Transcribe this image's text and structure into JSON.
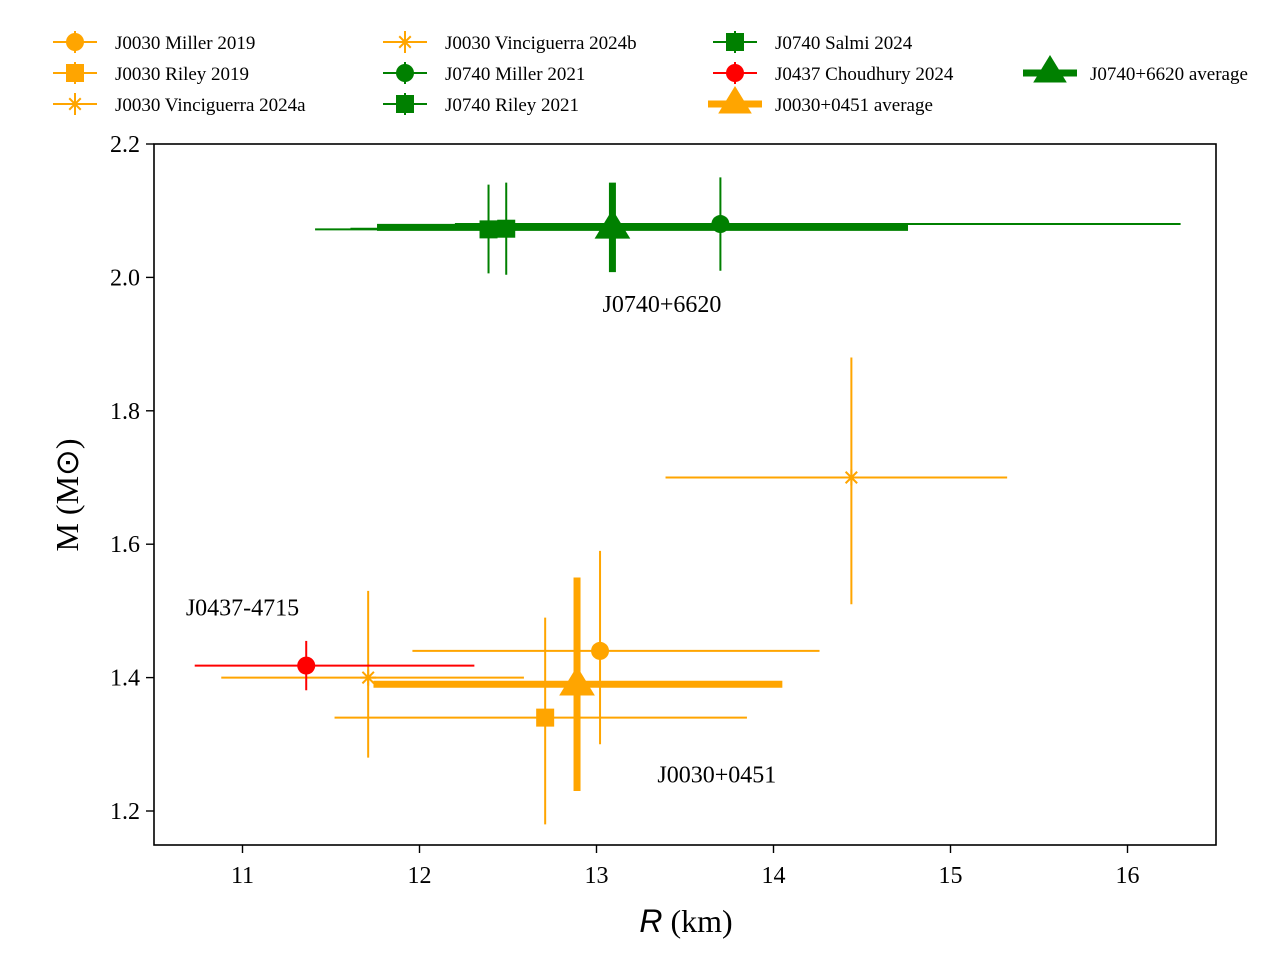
{
  "chart_data": {
    "type": "scatter",
    "title": "",
    "xlabel_italic": "R",
    "xlabel_rest": " (km)",
    "ylabel": "M (M⊙)",
    "xlim": [
      10.5,
      16.5
    ],
    "ylim": [
      1.15,
      2.2
    ],
    "xticks": [
      11,
      12,
      13,
      14,
      15,
      16
    ],
    "yticks": [
      1.2,
      1.4,
      1.6,
      1.8,
      2.0,
      2.2
    ],
    "xtick_labels": [
      "11",
      "12",
      "13",
      "14",
      "15",
      "16"
    ],
    "ytick_labels": [
      "1.2",
      "1.4",
      "1.6",
      "1.8",
      "2.0",
      "2.2"
    ],
    "grid": false,
    "legend_position": "top, above plot, 4 columns",
    "colors": {
      "J0030": "#FFA500",
      "J0740": "#008000",
      "J0437": "#FF0000"
    },
    "series": [
      {
        "name": "J0030 Miller 2019",
        "color": "#FFA500",
        "marker": "circle",
        "x": 13.02,
        "y": 1.44,
        "xerr": [
          1.06,
          1.24
        ],
        "yerr": [
          0.14,
          0.15
        ]
      },
      {
        "name": "J0030 Riley 2019",
        "color": "#FFA500",
        "marker": "square",
        "x": 12.71,
        "y": 1.34,
        "xerr": [
          1.19,
          1.14
        ],
        "yerr": [
          0.16,
          0.15
        ]
      },
      {
        "name": "J0030 Vinciguerra 2024a",
        "color": "#FFA500",
        "marker": "x",
        "x": 11.71,
        "y": 1.4,
        "xerr": [
          0.83,
          0.88
        ],
        "yerr": [
          0.12,
          0.13
        ]
      },
      {
        "name": "J0030 Vinciguerra 2024b",
        "color": "#FFA500",
        "marker": "x",
        "x": 14.44,
        "y": 1.7,
        "xerr": [
          1.05,
          0.88
        ],
        "yerr": [
          0.19,
          0.18
        ]
      },
      {
        "name": "J0740 Miller 2021",
        "color": "#008000",
        "marker": "circle",
        "x": 13.7,
        "y": 2.08,
        "xerr": [
          1.5,
          2.6
        ],
        "yerr": [
          0.07,
          0.07
        ]
      },
      {
        "name": "J0740 Riley 2021",
        "color": "#008000",
        "marker": "square",
        "x": 12.39,
        "y": 2.072,
        "xerr": [
          0.98,
          1.3
        ],
        "yerr": [
          0.066,
          0.067
        ]
      },
      {
        "name": "J0740 Salmi 2024",
        "color": "#008000",
        "marker": "square",
        "x": 12.49,
        "y": 2.073,
        "xerr": [
          0.88,
          1.28
        ],
        "yerr": [
          0.069,
          0.069
        ]
      },
      {
        "name": "J0437 Choudhury 2024",
        "color": "#FF0000",
        "marker": "circle",
        "x": 11.36,
        "y": 1.418,
        "xerr": [
          0.63,
          0.95
        ],
        "yerr": [
          0.037,
          0.037
        ]
      },
      {
        "name": "J0030+0451 average",
        "color": "#FFA500",
        "marker": "triangle",
        "bold": true,
        "x": 12.89,
        "y": 1.39,
        "xerr": [
          1.15,
          1.16
        ],
        "yerr": [
          0.16,
          0.16
        ]
      },
      {
        "name": "J0740+6620 average",
        "color": "#008000",
        "marker": "triangle",
        "bold": true,
        "x": 13.09,
        "y": 2.075,
        "xerr": [
          1.33,
          1.67
        ],
        "yerr": [
          0.067,
          0.067
        ]
      }
    ],
    "annotations": [
      {
        "text": "J0740+6620",
        "x": 13.37,
        "y": 1.96
      },
      {
        "text": "J0437-4715",
        "x": 11.0,
        "y": 1.505
      },
      {
        "text": "J0030+0451",
        "x": 13.68,
        "y": 1.255
      }
    ]
  }
}
